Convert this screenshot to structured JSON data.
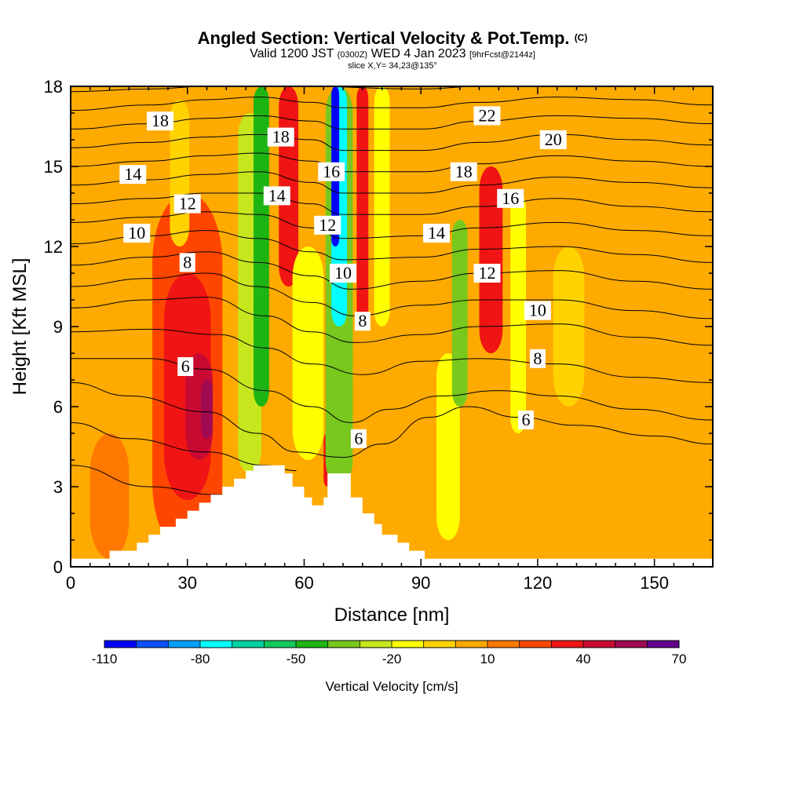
{
  "header": {
    "title_main": "Angled Section: Vertical Velocity & Pot.Temp.",
    "title_tag": "(C)",
    "valid_a": "Valid 1200 JST",
    "valid_z": "(0300Z)",
    "valid_b": "WED 4 Jan 2023",
    "valid_fcst": "[9hrFcst@2144z]",
    "slice": "slice X,Y= 34,23@135°"
  },
  "chart_data": {
    "type": "heatmap",
    "xlabel": "Distance [nm]",
    "ylabel": "Height [Kft MSL]",
    "xlim": [
      0,
      165
    ],
    "ylim": [
      0,
      18
    ],
    "x_ticks": [
      0,
      30,
      60,
      90,
      120,
      150
    ],
    "y_ticks": [
      0,
      3,
      6,
      9,
      12,
      15,
      18
    ],
    "colorbar": {
      "label": "Vertical Velocity [cm/s]",
      "levels": [
        -110,
        -100,
        -90,
        -80,
        -70,
        -60,
        -50,
        -40,
        -30,
        -20,
        -10,
        0,
        10,
        20,
        30,
        40,
        50,
        60,
        70
      ],
      "tick_labels": [
        -110,
        -80,
        -50,
        -20,
        10,
        40,
        70
      ],
      "colors": [
        "#0000ff",
        "#0a50ff",
        "#00a0ff",
        "#00ffff",
        "#00d2a0",
        "#14c85a",
        "#1eb414",
        "#78c81e",
        "#c8e61e",
        "#ffff00",
        "#ffd200",
        "#ffaa00",
        "#ff7800",
        "#ff4600",
        "#f01414",
        "#c80a32",
        "#a00a50",
        "#64008c"
      ]
    },
    "terrain": [
      [
        0,
        0.3
      ],
      [
        10,
        0.3
      ],
      [
        10,
        0.6
      ],
      [
        17,
        0.6
      ],
      [
        17,
        0.9
      ],
      [
        20,
        0.9
      ],
      [
        20,
        1.2
      ],
      [
        23,
        1.2
      ],
      [
        23,
        1.5
      ],
      [
        27,
        1.5
      ],
      [
        27,
        1.8
      ],
      [
        30,
        1.8
      ],
      [
        30,
        2.1
      ],
      [
        33,
        2.1
      ],
      [
        33,
        2.4
      ],
      [
        36,
        2.4
      ],
      [
        36,
        2.7
      ],
      [
        39,
        2.7
      ],
      [
        39,
        3.0
      ],
      [
        42,
        3.0
      ],
      [
        42,
        3.3
      ],
      [
        45,
        3.3
      ],
      [
        45,
        3.6
      ],
      [
        47,
        3.6
      ],
      [
        47,
        3.8
      ],
      [
        55,
        3.8
      ],
      [
        55,
        3.5
      ],
      [
        57,
        3.5
      ],
      [
        57,
        3.0
      ],
      [
        60,
        3.0
      ],
      [
        60,
        2.6
      ],
      [
        62,
        2.6
      ],
      [
        62,
        2.3
      ],
      [
        65,
        2.3
      ],
      [
        65,
        2.6
      ],
      [
        66,
        2.6
      ],
      [
        66,
        3.5
      ],
      [
        72,
        3.5
      ],
      [
        72,
        2.6
      ],
      [
        75,
        2.6
      ],
      [
        75,
        2.0
      ],
      [
        78,
        2.0
      ],
      [
        78,
        1.6
      ],
      [
        80,
        1.6
      ],
      [
        80,
        1.2
      ],
      [
        84,
        1.2
      ],
      [
        84,
        0.9
      ],
      [
        87,
        0.9
      ],
      [
        87,
        0.6
      ],
      [
        91,
        0.6
      ],
      [
        91,
        0.3
      ],
      [
        165,
        0.3
      ]
    ],
    "pot_temp_isentropes": [
      [
        [
          0,
          3.8
        ],
        [
          20,
          3.0
        ],
        [
          38,
          2.7
        ],
        [
          50,
          3.0
        ],
        [
          56,
          3.4
        ]
      ],
      [
        [
          0,
          5.4
        ],
        [
          15,
          4.8
        ],
        [
          35,
          4.3
        ],
        [
          50,
          3.8
        ],
        [
          58,
          3.6
        ]
      ],
      [
        [
          0,
          6.9
        ],
        [
          15,
          6.4
        ],
        [
          35,
          5.8
        ],
        [
          48,
          5.0
        ],
        [
          58,
          4.3
        ],
        [
          70,
          4.1
        ],
        [
          80,
          4.6
        ],
        [
          92,
          5.6
        ],
        [
          102,
          6.0
        ],
        [
          115,
          5.6
        ],
        [
          130,
          5.3
        ],
        [
          150,
          4.9
        ],
        [
          165,
          4.6
        ]
      ],
      [
        [
          0,
          7.8
        ],
        [
          20,
          7.8
        ],
        [
          35,
          7.4
        ],
        [
          50,
          6.6
        ],
        [
          62,
          6.0
        ],
        [
          72,
          5.4
        ],
        [
          82,
          5.9
        ],
        [
          95,
          6.4
        ],
        [
          110,
          6.6
        ],
        [
          125,
          6.4
        ],
        [
          145,
          5.9
        ],
        [
          165,
          5.5
        ]
      ],
      [
        [
          0,
          8.8
        ],
        [
          20,
          8.9
        ],
        [
          38,
          8.7
        ],
        [
          50,
          8.2
        ],
        [
          62,
          7.6
        ],
        [
          75,
          7.2
        ],
        [
          90,
          7.7
        ],
        [
          105,
          7.8
        ],
        [
          125,
          7.6
        ],
        [
          145,
          7.1
        ],
        [
          165,
          6.9
        ]
      ],
      [
        [
          0,
          9.7
        ],
        [
          20,
          10.0
        ],
        [
          35,
          10.1
        ],
        [
          50,
          9.4
        ],
        [
          62,
          8.8
        ],
        [
          73,
          8.4
        ],
        [
          90,
          8.7
        ],
        [
          105,
          9.0
        ],
        [
          125,
          9.1
        ],
        [
          145,
          8.6
        ],
        [
          165,
          8.3
        ]
      ],
      [
        [
          0,
          10.5
        ],
        [
          20,
          10.8
        ],
        [
          35,
          11.0
        ],
        [
          48,
          10.5
        ],
        [
          62,
          9.9
        ],
        [
          73,
          9.4
        ],
        [
          90,
          9.8
        ],
        [
          105,
          10.0
        ],
        [
          125,
          10.0
        ],
        [
          145,
          9.6
        ],
        [
          165,
          9.3
        ]
      ],
      [
        [
          0,
          11.3
        ],
        [
          20,
          11.6
        ],
        [
          35,
          11.8
        ],
        [
          48,
          11.4
        ],
        [
          62,
          10.9
        ],
        [
          72,
          10.4
        ],
        [
          90,
          10.7
        ],
        [
          105,
          11.0
        ],
        [
          125,
          11.1
        ],
        [
          145,
          10.7
        ],
        [
          165,
          10.4
        ]
      ],
      [
        [
          0,
          12.1
        ],
        [
          20,
          12.4
        ],
        [
          35,
          12.6
        ],
        [
          48,
          12.3
        ],
        [
          62,
          11.8
        ],
        [
          70,
          11.5
        ],
        [
          90,
          11.6
        ],
        [
          105,
          11.9
        ],
        [
          125,
          12.0
        ],
        [
          145,
          11.7
        ],
        [
          165,
          11.4
        ]
      ],
      [
        [
          0,
          12.9
        ],
        [
          20,
          13.1
        ],
        [
          35,
          13.3
        ],
        [
          48,
          13.2
        ],
        [
          62,
          12.7
        ],
        [
          70,
          12.3
        ],
        [
          90,
          12.4
        ],
        [
          105,
          12.7
        ],
        [
          125,
          12.9
        ],
        [
          145,
          12.6
        ],
        [
          165,
          12.4
        ]
      ],
      [
        [
          0,
          13.6
        ],
        [
          20,
          13.8
        ],
        [
          35,
          14.0
        ],
        [
          48,
          14.0
        ],
        [
          62,
          13.6
        ],
        [
          70,
          13.2
        ],
        [
          90,
          13.2
        ],
        [
          105,
          13.5
        ],
        [
          125,
          13.8
        ],
        [
          145,
          13.5
        ],
        [
          165,
          13.3
        ]
      ],
      [
        [
          0,
          14.3
        ],
        [
          20,
          14.5
        ],
        [
          35,
          14.7
        ],
        [
          48,
          14.8
        ],
        [
          62,
          14.4
        ],
        [
          70,
          14.0
        ],
        [
          90,
          14.0
        ],
        [
          105,
          14.3
        ],
        [
          125,
          14.6
        ],
        [
          145,
          14.4
        ],
        [
          165,
          14.2
        ]
      ],
      [
        [
          0,
          15.0
        ],
        [
          20,
          15.2
        ],
        [
          35,
          15.4
        ],
        [
          48,
          15.5
        ],
        [
          62,
          15.2
        ],
        [
          70,
          14.8
        ],
        [
          90,
          14.8
        ],
        [
          105,
          15.1
        ],
        [
          125,
          15.4
        ],
        [
          145,
          15.2
        ],
        [
          165,
          15.0
        ]
      ],
      [
        [
          0,
          15.7
        ],
        [
          20,
          15.9
        ],
        [
          35,
          16.1
        ],
        [
          48,
          16.2
        ],
        [
          62,
          16.0
        ],
        [
          70,
          15.6
        ],
        [
          90,
          15.6
        ],
        [
          105,
          15.9
        ],
        [
          125,
          16.2
        ],
        [
          145,
          16.0
        ],
        [
          165,
          15.8
        ]
      ],
      [
        [
          0,
          16.4
        ],
        [
          20,
          16.6
        ],
        [
          35,
          16.8
        ],
        [
          48,
          16.9
        ],
        [
          62,
          16.7
        ],
        [
          70,
          16.4
        ],
        [
          90,
          16.4
        ],
        [
          105,
          16.7
        ],
        [
          125,
          16.9
        ],
        [
          145,
          16.8
        ],
        [
          165,
          16.6
        ]
      ],
      [
        [
          0,
          17.1
        ],
        [
          20,
          17.3
        ],
        [
          35,
          17.5
        ],
        [
          48,
          17.6
        ],
        [
          62,
          17.4
        ],
        [
          70,
          17.2
        ],
        [
          90,
          17.2
        ],
        [
          105,
          17.4
        ],
        [
          125,
          17.6
        ],
        [
          145,
          17.5
        ],
        [
          165,
          17.3
        ]
      ],
      [
        [
          0,
          17.8
        ],
        [
          20,
          17.9
        ],
        [
          35,
          18.0
        ],
        [
          60,
          18.0
        ],
        [
          90,
          17.9
        ],
        [
          105,
          18.0
        ],
        [
          165,
          18.0
        ]
      ]
    ],
    "contour_labels": [
      {
        "text": "18",
        "x": 23,
        "y": 16.7
      },
      {
        "text": "14",
        "x": 16,
        "y": 14.7
      },
      {
        "text": "12",
        "x": 30,
        "y": 13.6
      },
      {
        "text": "10",
        "x": 17,
        "y": 12.5
      },
      {
        "text": "8",
        "x": 30,
        "y": 11.4
      },
      {
        "text": "6",
        "x": 29.5,
        "y": 7.5
      },
      {
        "text": "18",
        "x": 54,
        "y": 16.1
      },
      {
        "text": "14",
        "x": 53,
        "y": 13.9
      },
      {
        "text": "16",
        "x": 67,
        "y": 14.8
      },
      {
        "text": "12",
        "x": 66,
        "y": 12.8
      },
      {
        "text": "10",
        "x": 70,
        "y": 11.0
      },
      {
        "text": "8",
        "x": 75,
        "y": 9.2
      },
      {
        "text": "6",
        "x": 74,
        "y": 4.8
      },
      {
        "text": "22",
        "x": 107,
        "y": 16.9
      },
      {
        "text": "20",
        "x": 124,
        "y": 16.0
      },
      {
        "text": "18",
        "x": 101,
        "y": 14.8
      },
      {
        "text": "16",
        "x": 113,
        "y": 13.8
      },
      {
        "text": "14",
        "x": 94,
        "y": 12.5
      },
      {
        "text": "12",
        "x": 107,
        "y": 11.0
      },
      {
        "text": "10",
        "x": 120,
        "y": 9.6
      },
      {
        "text": "8",
        "x": 120,
        "y": 7.8
      },
      {
        "text": "6",
        "x": 117,
        "y": 5.5
      }
    ],
    "velocity_features": [
      {
        "type": "background",
        "value": 5
      },
      {
        "type": "band",
        "x": 10,
        "y0": 0.3,
        "y1": 5,
        "w": 10,
        "value": 15
      },
      {
        "type": "band",
        "x": 30,
        "y0": 0.5,
        "y1": 14,
        "w": 18,
        "value": 20
      },
      {
        "type": "band",
        "x": 30,
        "y0": 2.5,
        "y1": 11,
        "w": 12,
        "value": 30
      },
      {
        "type": "band",
        "x": 33,
        "y0": 4,
        "y1": 8,
        "w": 7,
        "value": 42
      },
      {
        "type": "band",
        "x": 35,
        "y0": 4.8,
        "y1": 7,
        "w": 3,
        "value": 52
      },
      {
        "type": "band",
        "x": 28,
        "y0": 12,
        "y1": 17.5,
        "w": 5,
        "value": -10
      },
      {
        "type": "band",
        "x": 46,
        "y0": 3.5,
        "y1": 17,
        "w": 6,
        "value": -30
      },
      {
        "type": "band",
        "x": 49,
        "y0": 6,
        "y1": 18,
        "w": 4,
        "value": -45
      },
      {
        "type": "band",
        "x": 56,
        "y0": 10.5,
        "y1": 18,
        "w": 5,
        "value": 38
      },
      {
        "type": "band",
        "x": 61,
        "y0": 4,
        "y1": 12,
        "w": 8,
        "value": -15
      },
      {
        "type": "band",
        "x": 66,
        "y0": 3,
        "y1": 5,
        "w": 2,
        "value": 38
      },
      {
        "type": "band",
        "x": 69,
        "y0": 3,
        "y1": 18,
        "w": 7,
        "value": -40
      },
      {
        "type": "band",
        "x": 69,
        "y0": 9,
        "y1": 18,
        "w": 4,
        "value": -75
      },
      {
        "type": "band",
        "x": 68,
        "y0": 12,
        "y1": 18,
        "w": 2,
        "value": -105
      },
      {
        "type": "band",
        "x": 75,
        "y0": 9,
        "y1": 18,
        "w": 3,
        "value": 35
      },
      {
        "type": "band",
        "x": 80,
        "y0": 9,
        "y1": 18,
        "w": 4,
        "value": -15
      },
      {
        "type": "band",
        "x": 97,
        "y0": 1,
        "y1": 8,
        "w": 6,
        "value": -18
      },
      {
        "type": "band",
        "x": 100,
        "y0": 6,
        "y1": 13,
        "w": 4,
        "value": -35
      },
      {
        "type": "band",
        "x": 108,
        "y0": 8,
        "y1": 15,
        "w": 6,
        "value": 30
      },
      {
        "type": "band",
        "x": 115,
        "y0": 5,
        "y1": 14,
        "w": 4,
        "value": -20
      },
      {
        "type": "band",
        "x": 128,
        "y0": 6,
        "y1": 12,
        "w": 8,
        "value": -8
      }
    ]
  }
}
